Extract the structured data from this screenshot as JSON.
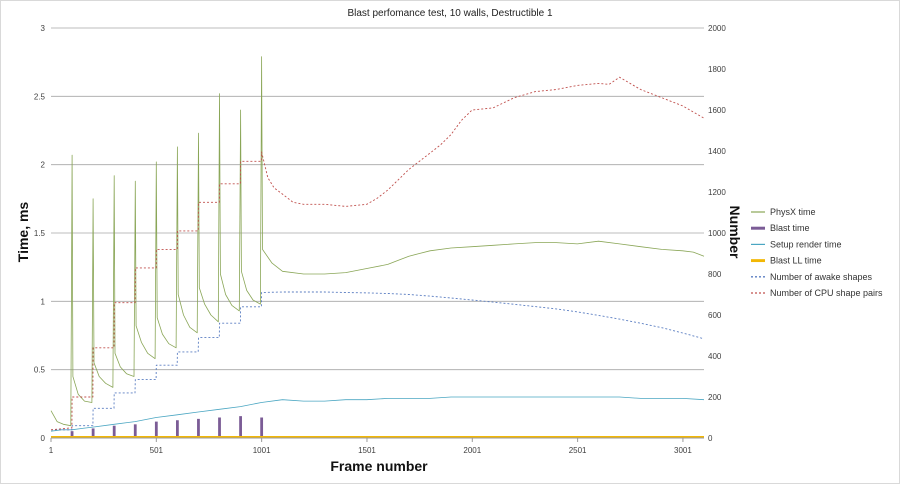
{
  "chart_data": {
    "type": "line",
    "title": "Blast perfomance test, 10 walls, Destructible 1",
    "xlabel": "Frame number",
    "ylabel": "Time, ms",
    "y2label": "Number",
    "xlim": [
      1,
      3101
    ],
    "ylim": [
      0,
      3
    ],
    "y2lim": [
      0,
      2000
    ],
    "x_ticks": [
      1,
      501,
      1001,
      1501,
      2001,
      2501,
      3001
    ],
    "y_ticks": [
      0,
      0.5,
      1,
      1.5,
      2,
      2.5,
      3
    ],
    "y_tick_labels": [
      "0",
      "0.5",
      "1",
      "1.5",
      "2",
      "2.5",
      "3"
    ],
    "y2_ticks": [
      0,
      200,
      400,
      600,
      800,
      1000,
      1200,
      1400,
      1600,
      1800,
      2000
    ],
    "grid": "horizontal",
    "legend": "right",
    "series": [
      {
        "name": "PhysX time",
        "axis": "left",
        "color": "#8aa657",
        "style": "solid",
        "width": 0.8,
        "x": [
          1,
          30,
          60,
          95,
          101,
          105,
          130,
          160,
          195,
          201,
          205,
          230,
          260,
          295,
          301,
          305,
          330,
          360,
          395,
          401,
          405,
          430,
          460,
          495,
          501,
          505,
          530,
          560,
          595,
          601,
          605,
          630,
          660,
          695,
          701,
          705,
          730,
          760,
          795,
          801,
          805,
          830,
          860,
          895,
          901,
          905,
          930,
          960,
          995,
          1001,
          1005,
          1050,
          1100,
          1200,
          1300,
          1400,
          1500,
          1600,
          1650,
          1700,
          1750,
          1800,
          1900,
          2000,
          2100,
          2200,
          2300,
          2400,
          2500,
          2600,
          2700,
          2800,
          2900,
          3000,
          3050,
          3101
        ],
        "y": [
          0.2,
          0.12,
          0.1,
          0.09,
          2.07,
          0.45,
          0.32,
          0.27,
          0.26,
          1.75,
          0.55,
          0.45,
          0.4,
          0.37,
          1.92,
          0.62,
          0.52,
          0.47,
          0.45,
          1.88,
          0.82,
          0.7,
          0.62,
          0.58,
          2.02,
          0.88,
          0.76,
          0.69,
          0.66,
          2.13,
          1.05,
          0.9,
          0.81,
          0.77,
          2.23,
          1.1,
          0.98,
          0.9,
          0.85,
          2.52,
          1.2,
          1.05,
          0.97,
          0.93,
          2.4,
          1.22,
          1.08,
          1.01,
          0.98,
          2.79,
          1.38,
          1.28,
          1.22,
          1.2,
          1.2,
          1.21,
          1.24,
          1.27,
          1.3,
          1.33,
          1.35,
          1.37,
          1.39,
          1.4,
          1.41,
          1.42,
          1.43,
          1.43,
          1.42,
          1.44,
          1.42,
          1.4,
          1.38,
          1.37,
          1.36,
          1.33
        ]
      },
      {
        "name": "Blast time",
        "axis": "left",
        "color": "#7b5c96",
        "style": "solid",
        "width": 2.8,
        "x": [
          101,
          201,
          301,
          401,
          501,
          601,
          701,
          801,
          901,
          1001
        ],
        "y": [
          0.05,
          0.07,
          0.09,
          0.1,
          0.12,
          0.13,
          0.14,
          0.15,
          0.16,
          0.15
        ]
      },
      {
        "name": "Setup render time",
        "axis": "left",
        "color": "#4aa6c2",
        "style": "solid",
        "width": 0.8,
        "x": [
          1,
          50,
          100,
          150,
          200,
          300,
          400,
          500,
          600,
          700,
          800,
          900,
          1000,
          1100,
          1200,
          1300,
          1400,
          1500,
          1600,
          1700,
          1800,
          1900,
          2000,
          2100,
          2200,
          2300,
          2400,
          2500,
          2600,
          2700,
          2800,
          2900,
          3000,
          3101
        ],
        "y": [
          0.05,
          0.06,
          0.06,
          0.07,
          0.08,
          0.1,
          0.12,
          0.15,
          0.17,
          0.19,
          0.21,
          0.23,
          0.26,
          0.28,
          0.27,
          0.27,
          0.28,
          0.28,
          0.29,
          0.29,
          0.29,
          0.3,
          0.3,
          0.3,
          0.3,
          0.3,
          0.3,
          0.3,
          0.3,
          0.3,
          0.29,
          0.29,
          0.29,
          0.28
        ]
      },
      {
        "name": "Blast LL time",
        "axis": "left",
        "color": "#f2b705",
        "style": "solid",
        "width": 2.5,
        "x": [
          1,
          3101
        ],
        "y": [
          0.005,
          0.005
        ]
      },
      {
        "name": "Number of awake shapes",
        "axis": "right",
        "color": "#5b7ec2",
        "style": "dashed",
        "width": 0.9,
        "x": [
          1,
          100,
          101,
          200,
          201,
          300,
          301,
          400,
          401,
          500,
          501,
          600,
          601,
          700,
          701,
          800,
          801,
          900,
          901,
          1000,
          1001,
          1100,
          1200,
          1300,
          1400,
          1500,
          1600,
          1700,
          1800,
          1900,
          2000,
          2100,
          2200,
          2300,
          2400,
          2500,
          2600,
          2700,
          2800,
          2900,
          3000,
          3101
        ],
        "y": [
          40,
          40,
          60,
          60,
          145,
          145,
          220,
          220,
          285,
          285,
          355,
          355,
          420,
          420,
          490,
          490,
          560,
          560,
          640,
          640,
          710,
          712,
          712,
          712,
          710,
          708,
          705,
          700,
          692,
          683,
          673,
          663,
          652,
          641,
          630,
          615,
          598,
          580,
          560,
          538,
          512,
          484
        ]
      },
      {
        "name": "Number of CPU shape pairs",
        "axis": "right",
        "color": "#c0504d",
        "style": "dashed",
        "width": 0.9,
        "x": [
          1,
          100,
          101,
          200,
          201,
          300,
          301,
          400,
          401,
          500,
          501,
          600,
          601,
          700,
          701,
          800,
          801,
          900,
          901,
          1000,
          1001,
          1030,
          1060,
          1100,
          1150,
          1200,
          1300,
          1400,
          1500,
          1550,
          1600,
          1650,
          1700,
          1750,
          1800,
          1850,
          1900,
          1950,
          2000,
          2100,
          2200,
          2300,
          2400,
          2500,
          2600,
          2650,
          2700,
          2750,
          2800,
          2900,
          3000,
          3101
        ],
        "y": [
          40,
          50,
          200,
          200,
          440,
          440,
          660,
          660,
          830,
          830,
          920,
          920,
          1010,
          1010,
          1150,
          1150,
          1240,
          1240,
          1350,
          1350,
          1395,
          1270,
          1220,
          1190,
          1150,
          1140,
          1140,
          1130,
          1140,
          1170,
          1210,
          1260,
          1310,
          1350,
          1390,
          1430,
          1480,
          1550,
          1600,
          1610,
          1660,
          1690,
          1700,
          1720,
          1730,
          1725,
          1760,
          1730,
          1700,
          1660,
          1620,
          1560
        ]
      }
    ]
  }
}
